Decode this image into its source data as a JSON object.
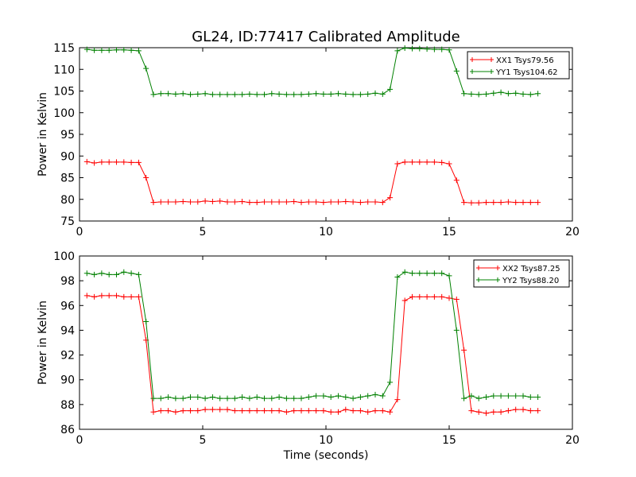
{
  "chart_data": [
    {
      "type": "line",
      "title": "GL24, ID:77417 Calibrated Amplitude",
      "xlabel": "",
      "ylabel": "Power in Kelvin",
      "xlim": [
        0,
        20
      ],
      "ylim": [
        75,
        115
      ],
      "xticks": [
        0,
        5,
        10,
        15,
        20
      ],
      "yticks": [
        75,
        80,
        85,
        90,
        95,
        100,
        105,
        110,
        115
      ],
      "grid": false,
      "legend_position": "top-right",
      "x": [
        0.3,
        0.6,
        0.9,
        1.2,
        1.5,
        1.8,
        2.1,
        2.4,
        2.7,
        3.0,
        3.3,
        3.6,
        3.9,
        4.2,
        4.5,
        4.8,
        5.1,
        5.4,
        5.7,
        6.0,
        6.3,
        6.6,
        6.9,
        7.2,
        7.5,
        7.8,
        8.1,
        8.4,
        8.7,
        9.0,
        9.3,
        9.6,
        9.9,
        10.2,
        10.5,
        10.8,
        11.1,
        11.4,
        11.7,
        12.0,
        12.3,
        12.6,
        12.9,
        13.2,
        13.5,
        13.8,
        14.1,
        14.4,
        14.7,
        15.0,
        15.3,
        15.6,
        15.9,
        16.2,
        16.5,
        16.8,
        17.1,
        17.4,
        17.7,
        18.0,
        18.3,
        18.6
      ],
      "series": [
        {
          "name": "XX1 Tsys79.56",
          "color": "#ff0000",
          "values": [
            88.7,
            88.4,
            88.6,
            88.6,
            88.6,
            88.6,
            88.5,
            88.5,
            85.0,
            79.3,
            79.4,
            79.4,
            79.4,
            79.5,
            79.4,
            79.4,
            79.6,
            79.5,
            79.6,
            79.4,
            79.4,
            79.5,
            79.3,
            79.3,
            79.4,
            79.4,
            79.4,
            79.4,
            79.5,
            79.3,
            79.4,
            79.4,
            79.3,
            79.4,
            79.4,
            79.5,
            79.4,
            79.3,
            79.4,
            79.4,
            79.3,
            80.4,
            88.2,
            88.6,
            88.6,
            88.6,
            88.6,
            88.6,
            88.5,
            88.2,
            84.4,
            79.3,
            79.2,
            79.2,
            79.3,
            79.3,
            79.3,
            79.4,
            79.3,
            79.3,
            79.3,
            79.3
          ]
        },
        {
          "name": "YY1 Tsys104.62",
          "color": "#008000",
          "values": [
            114.6,
            114.4,
            114.4,
            114.4,
            114.5,
            114.5,
            114.4,
            114.3,
            110.2,
            104.2,
            104.4,
            104.4,
            104.3,
            104.4,
            104.2,
            104.3,
            104.4,
            104.2,
            104.2,
            104.2,
            104.2,
            104.2,
            104.3,
            104.2,
            104.2,
            104.4,
            104.3,
            104.2,
            104.2,
            104.2,
            104.3,
            104.4,
            104.3,
            104.3,
            104.4,
            104.3,
            104.2,
            104.2,
            104.3,
            104.5,
            104.3,
            105.4,
            114.3,
            114.9,
            114.8,
            114.8,
            114.7,
            114.6,
            114.6,
            114.5,
            109.6,
            104.4,
            104.3,
            104.2,
            104.3,
            104.5,
            104.7,
            104.4,
            104.5,
            104.3,
            104.2,
            104.4
          ]
        }
      ]
    },
    {
      "type": "line",
      "title": "",
      "xlabel": "Time (seconds)",
      "ylabel": "Power in Kelvin",
      "xlim": [
        0,
        20
      ],
      "ylim": [
        86,
        100
      ],
      "xticks": [
        0,
        5,
        10,
        15,
        20
      ],
      "yticks": [
        86,
        88,
        90,
        92,
        94,
        96,
        98,
        100
      ],
      "grid": false,
      "legend_position": "top-right",
      "x": [
        0.3,
        0.6,
        0.9,
        1.2,
        1.5,
        1.8,
        2.1,
        2.4,
        2.7,
        3.0,
        3.3,
        3.6,
        3.9,
        4.2,
        4.5,
        4.8,
        5.1,
        5.4,
        5.7,
        6.0,
        6.3,
        6.6,
        6.9,
        7.2,
        7.5,
        7.8,
        8.1,
        8.4,
        8.7,
        9.0,
        9.3,
        9.6,
        9.9,
        10.2,
        10.5,
        10.8,
        11.1,
        11.4,
        11.7,
        12.0,
        12.3,
        12.6,
        12.9,
        13.2,
        13.5,
        13.8,
        14.1,
        14.4,
        14.7,
        15.0,
        15.3,
        15.6,
        15.9,
        16.2,
        16.5,
        16.8,
        17.1,
        17.4,
        17.7,
        18.0,
        18.3,
        18.6
      ],
      "series": [
        {
          "name": "XX2 Tsys87.25",
          "color": "#ff0000",
          "values": [
            96.8,
            96.7,
            96.8,
            96.8,
            96.8,
            96.7,
            96.7,
            96.7,
            93.2,
            87.4,
            87.5,
            87.5,
            87.4,
            87.5,
            87.5,
            87.5,
            87.6,
            87.6,
            87.6,
            87.6,
            87.5,
            87.5,
            87.5,
            87.5,
            87.5,
            87.5,
            87.5,
            87.4,
            87.5,
            87.5,
            87.5,
            87.5,
            87.5,
            87.4,
            87.4,
            87.6,
            87.5,
            87.5,
            87.4,
            87.5,
            87.5,
            87.4,
            88.4,
            96.4,
            96.7,
            96.7,
            96.7,
            96.7,
            96.7,
            96.6,
            96.5,
            92.4,
            87.5,
            87.4,
            87.3,
            87.4,
            87.4,
            87.5,
            87.6,
            87.6,
            87.5,
            87.5
          ]
        },
        {
          "name": "YY2 Tsys88.20",
          "color": "#008000",
          "values": [
            98.6,
            98.5,
            98.6,
            98.5,
            98.5,
            98.7,
            98.6,
            98.5,
            94.7,
            88.5,
            88.5,
            88.6,
            88.5,
            88.5,
            88.6,
            88.6,
            88.5,
            88.6,
            88.5,
            88.5,
            88.5,
            88.6,
            88.5,
            88.6,
            88.5,
            88.5,
            88.6,
            88.5,
            88.5,
            88.5,
            88.6,
            88.7,
            88.7,
            88.6,
            88.7,
            88.6,
            88.5,
            88.6,
            88.7,
            88.8,
            88.7,
            89.8,
            98.3,
            98.7,
            98.6,
            98.6,
            98.6,
            98.6,
            98.6,
            98.4,
            94.0,
            88.5,
            88.7,
            88.5,
            88.6,
            88.7,
            88.7,
            88.7,
            88.7,
            88.7,
            88.6,
            88.6
          ]
        }
      ]
    }
  ]
}
